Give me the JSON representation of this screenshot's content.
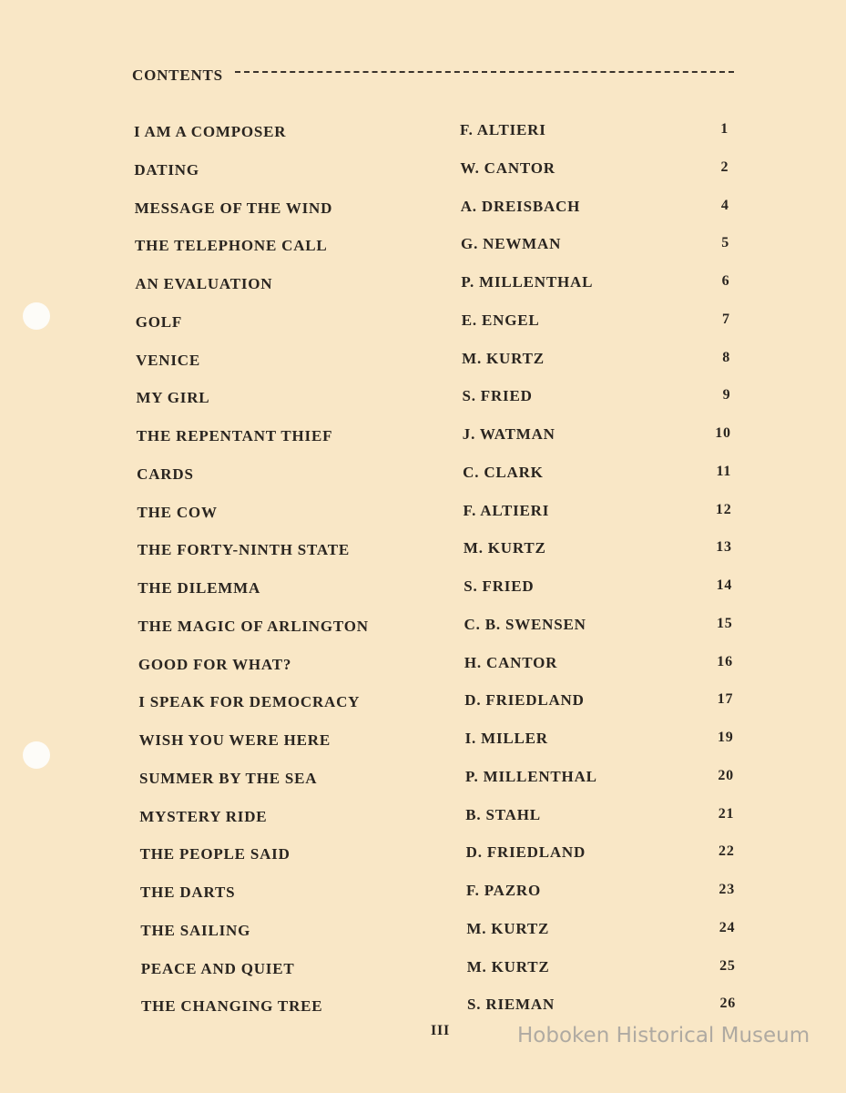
{
  "heading": "CONTENTS",
  "entries": [
    {
      "title": "I AM A COMPOSER",
      "author": "F. ALTIERI",
      "page": "1"
    },
    {
      "title": "DATING",
      "author": "W. CANTOR",
      "page": "2"
    },
    {
      "title": "MESSAGE OF THE WIND",
      "author": "A. DREISBACH",
      "page": "4"
    },
    {
      "title": "THE TELEPHONE CALL",
      "author": "G. NEWMAN",
      "page": "5"
    },
    {
      "title": "AN EVALUATION",
      "author": "P. MILLENTHAL",
      "page": "6"
    },
    {
      "title": "GOLF",
      "author": "E. ENGEL",
      "page": "7"
    },
    {
      "title": "VENICE",
      "author": "M. KURTZ",
      "page": "8"
    },
    {
      "title": "MY GIRL",
      "author": "S. FRIED",
      "page": "9"
    },
    {
      "title": "THE REPENTANT THIEF",
      "author": "J. WATMAN",
      "page": "10"
    },
    {
      "title": "CARDS",
      "author": "C. CLARK",
      "page": "11"
    },
    {
      "title": "THE COW",
      "author": "F. ALTIERI",
      "page": "12"
    },
    {
      "title": "THE FORTY-NINTH STATE",
      "author": "M. KURTZ",
      "page": "13"
    },
    {
      "title": "THE DILEMMA",
      "author": "S. FRIED",
      "page": "14"
    },
    {
      "title": "THE MAGIC OF ARLINGTON",
      "author": "C. B. SWENSEN",
      "page": "15"
    },
    {
      "title": "GOOD FOR WHAT?",
      "author": "H. CANTOR",
      "page": "16"
    },
    {
      "title": "I SPEAK FOR DEMOCRACY",
      "author": "D. FRIEDLAND",
      "page": "17"
    },
    {
      "title": "WISH YOU WERE HERE",
      "author": "I. MILLER",
      "page": "19"
    },
    {
      "title": "SUMMER BY THE SEA",
      "author": "P. MILLENTHAL",
      "page": "20"
    },
    {
      "title": "MYSTERY RIDE",
      "author": "B. STAHL",
      "page": "21"
    },
    {
      "title": "THE PEOPLE SAID",
      "author": "D. FRIEDLAND",
      "page": "22"
    },
    {
      "title": "THE DARTS",
      "author": "F. PAZRO",
      "page": "23"
    },
    {
      "title": "THE SAILING",
      "author": "M. KURTZ",
      "page": "24"
    },
    {
      "title": "PEACE AND QUIET",
      "author": "M. KURTZ",
      "page": "25"
    },
    {
      "title": "THE CHANGING TREE",
      "author": "S. RIEMAN",
      "page": "26"
    }
  ],
  "folio": "III",
  "watermark": "Hoboken Historical Museum"
}
